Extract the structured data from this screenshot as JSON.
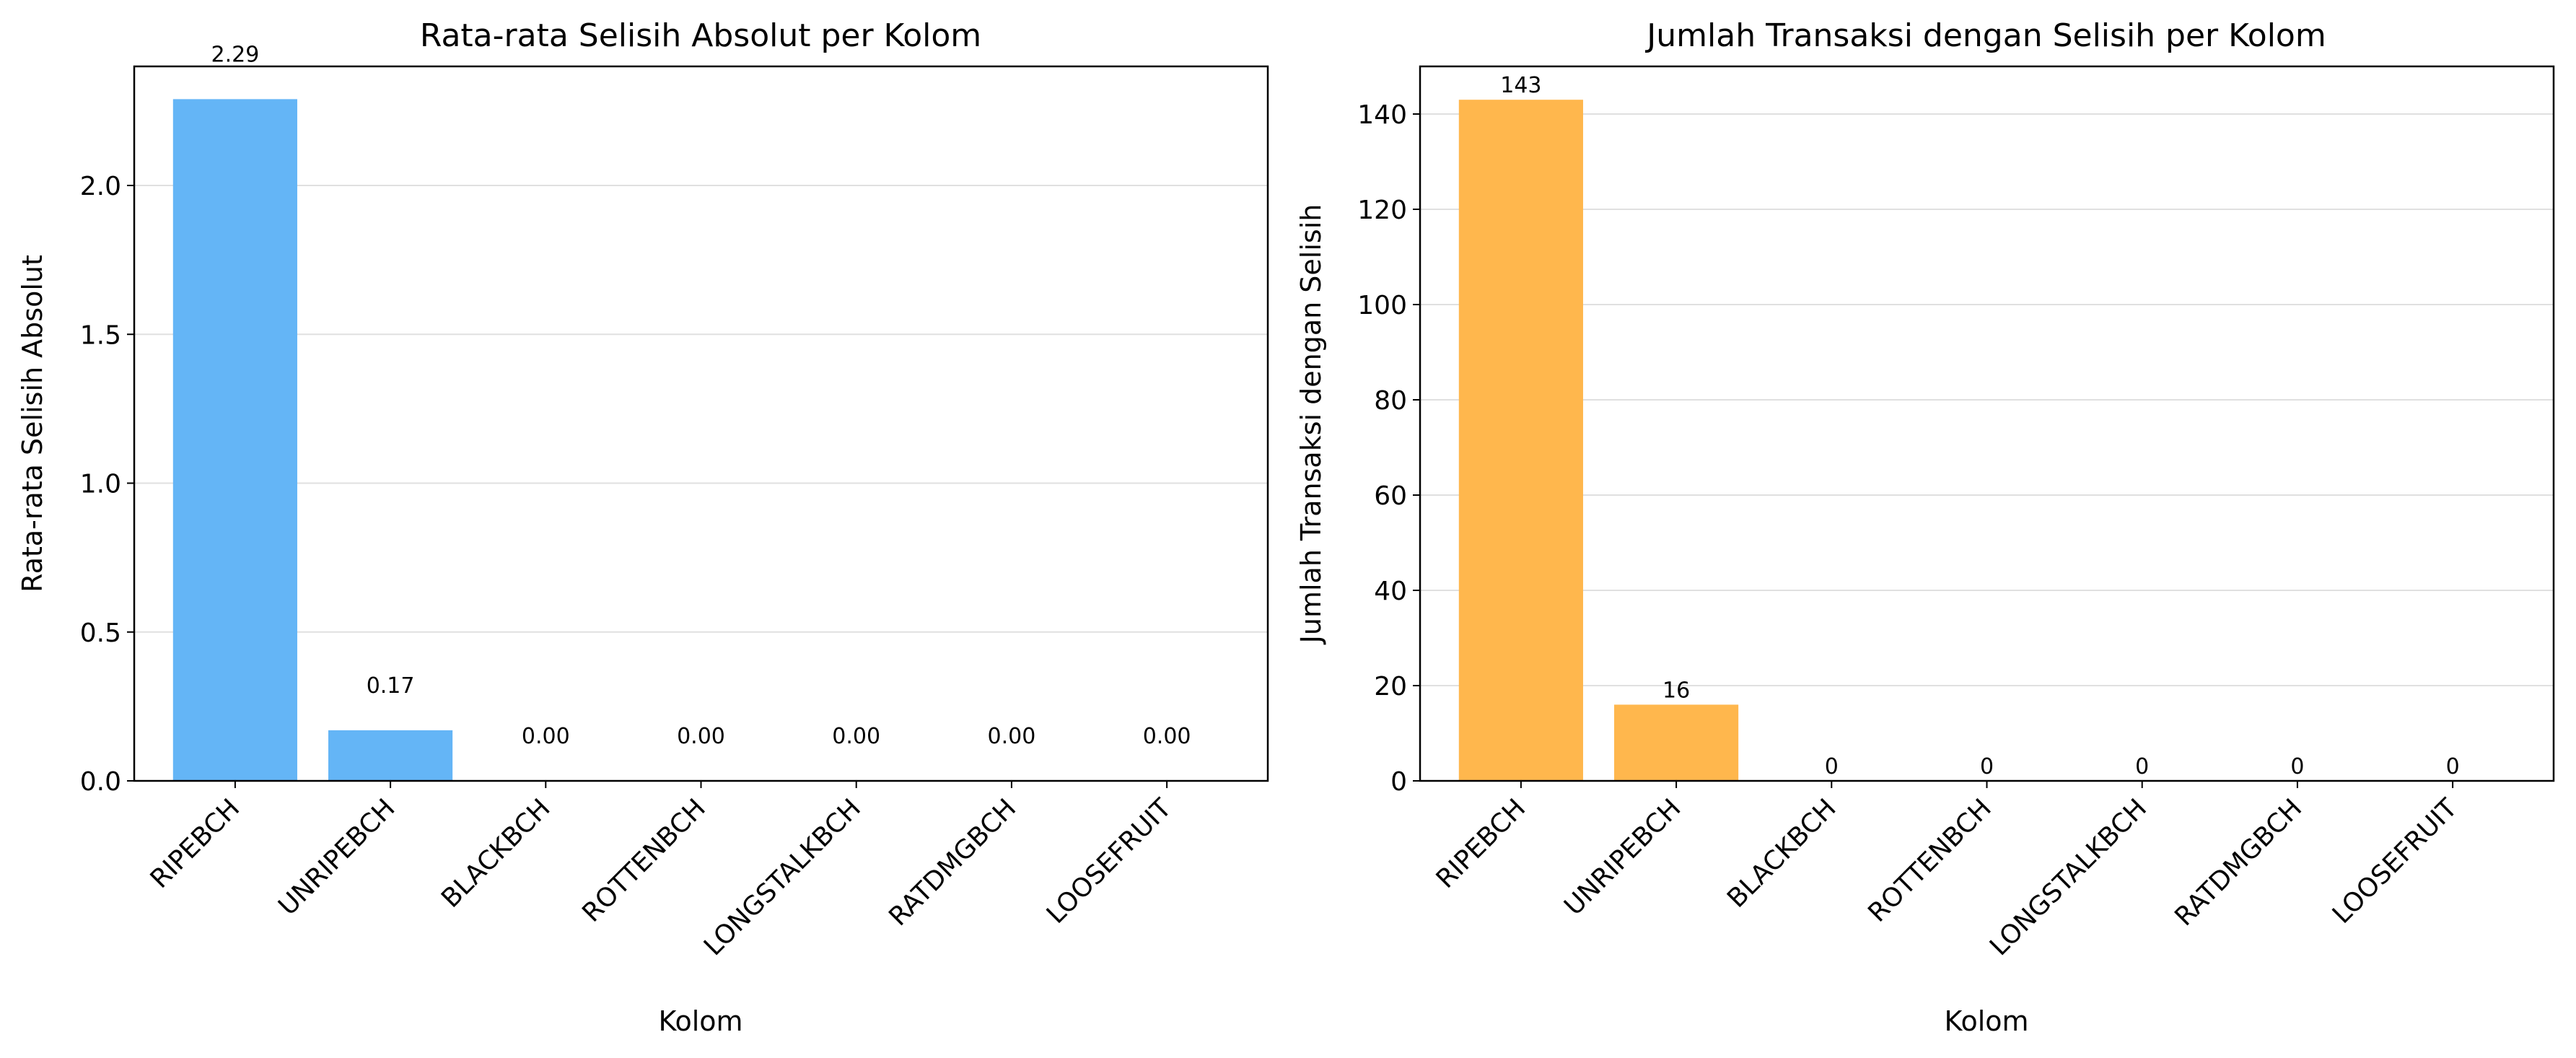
{
  "chart_data": [
    {
      "type": "bar",
      "title": "Rata-rata Selisih Absolut per Kolom",
      "xlabel": "Kolom",
      "ylabel": "Rata-rata Selisih Absolut",
      "categories": [
        "RIPEBCH",
        "UNRIPEBCH",
        "BLACKBCH",
        "ROTTENBCH",
        "LONGSTALKBCH",
        "RATDMGBCH",
        "LOOSEFRUIT"
      ],
      "values": [
        2.29,
        0.17,
        0.0,
        0.0,
        0.0,
        0.0,
        0.0
      ],
      "value_labels": [
        "2.29",
        "0.17",
        "0.00",
        "0.00",
        "0.00",
        "0.00",
        "0.00"
      ],
      "yticks": [
        0.0,
        0.5,
        1.0,
        1.5,
        2.0
      ],
      "ytick_labels": [
        "0.0",
        "0.5",
        "1.0",
        "1.5",
        "2.0"
      ],
      "ylim": [
        0,
        2.4
      ],
      "grid": "y",
      "color": "#64b5f6"
    },
    {
      "type": "bar",
      "title": "Jumlah Transaksi dengan Selisih per Kolom",
      "xlabel": "Kolom",
      "ylabel": "Jumlah Transaksi dengan Selisih",
      "categories": [
        "RIPEBCH",
        "UNRIPEBCH",
        "BLACKBCH",
        "ROTTENBCH",
        "LONGSTALKBCH",
        "RATDMGBCH",
        "LOOSEFRUIT"
      ],
      "values": [
        143,
        16,
        0,
        0,
        0,
        0,
        0
      ],
      "value_labels": [
        "143",
        "16",
        "0",
        "0",
        "0",
        "0",
        "0"
      ],
      "yticks": [
        0,
        20,
        40,
        60,
        80,
        100,
        120,
        140
      ],
      "ytick_labels": [
        "0",
        "20",
        "40",
        "60",
        "80",
        "100",
        "120",
        "140"
      ],
      "ylim": [
        0,
        150
      ],
      "grid": "y",
      "color": "#ffb74d"
    }
  ]
}
